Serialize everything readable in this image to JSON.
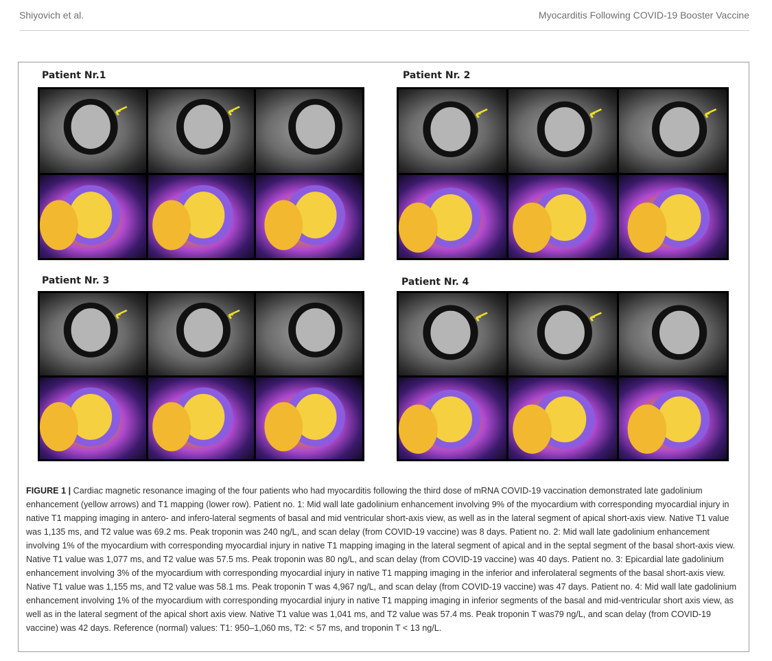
{
  "header": {
    "authors": "Shiyovich et al.",
    "title": "Myocarditis Following COVID-19 Booster Vaccine"
  },
  "figure": {
    "panels": [
      {
        "label": "Patient Nr.1"
      },
      {
        "label": "Patient Nr. 2"
      },
      {
        "label": "Patient Nr. 3"
      },
      {
        "label": "Patient Nr. 4"
      }
    ]
  },
  "caption": {
    "label": "FIGURE 1 |",
    "text": "Cardiac magnetic resonance imaging of the four patients who had myocarditis following the third dose of mRNA COVID-19 vaccination demonstrated late gadolinium enhancement (yellow arrows) and T1 mapping (lower row). Patient no. 1: Mid wall late gadolinium enhancement involving 9% of the myocardium with corresponding myocardial injury in native T1 mapping imaging in antero- and infero-lateral segments of basal and mid ventricular short-axis view, as well as in the lateral segment of apical short-axis view. Native T1 value was 1,135 ms, and T2 value was 69.2 ms. Peak troponin was 240 ng/L, and scan delay (from COVID-19 vaccine) was 8 days. Patient no. 2: Mid wall late gadolinium enhancement involving 1% of the myocardium with corresponding myocardial injury in native T1 mapping imaging in the lateral segment of apical and in the septal segment of the basal short-axis view. Native T1 value was 1,077 ms, and T2 value was 57.5 ms. Peak troponin was 80 ng/L, and scan delay (from COVID-19 vaccine) was 40 days. Patient no. 3: Epicardial late gadolinium enhancement involving 3% of the myocardium with corresponding myocardial injury in native T1 mapping imaging in the inferior and inferolateral segments of the basal short-axis view. Native T1 value was 1,155 ms, and T2 value was 58.1 ms. Peak troponin T was 4,967 ng/L, and scan delay (from COVID-19 vaccine) was 47 days. Patient no. 4: Mid wall late gadolinium enhancement involving 1% of the myocardium with corresponding myocardial injury in native T1 mapping imaging in inferior segments of the basal and mid-ventricular short axis view, as well as in the lateral segment of the apical short axis view. Native T1 value was 1,041 ms, and T2 value was 57.4 ms. Peak troponin T was79 ng/L, and scan delay (from COVID-19 vaccine) was 42 days. Reference (normal) values: T1: 950–1,060 ms, T2: < 57 ms, and troponin T < 13 ng/L."
  }
}
